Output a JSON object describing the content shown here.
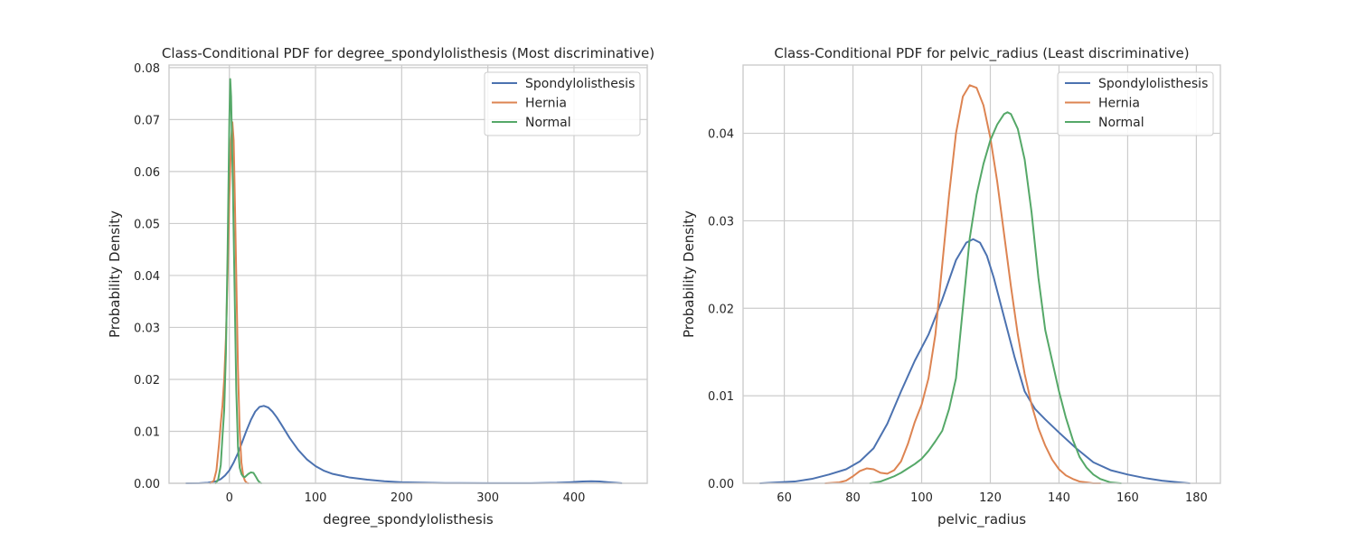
{
  "chart_data": [
    {
      "type": "line",
      "title": "Class-Conditional PDF for degree_spondylolisthesis (Most discriminative)",
      "xlabel": "degree_spondylolisthesis",
      "ylabel": "Probability Density",
      "xlim": [
        -70,
        485
      ],
      "ylim": [
        0,
        0.0805
      ],
      "xticks": [
        0,
        100,
        200,
        300,
        400
      ],
      "yticks": [
        0.0,
        0.01,
        0.02,
        0.03,
        0.04,
        0.05,
        0.06,
        0.07,
        0.08
      ],
      "ytick_decimals": 2,
      "grid": true,
      "legend": "top-right",
      "series": [
        {
          "name": "Spondylolisthesis",
          "color": "#4c72b0",
          "x": [
            -50,
            -35,
            -25,
            -15,
            -10,
            -5,
            0,
            5,
            10,
            15,
            20,
            25,
            30,
            35,
            40,
            45,
            50,
            55,
            60,
            70,
            80,
            90,
            100,
            110,
            120,
            140,
            160,
            180,
            200,
            250,
            300,
            350,
            380,
            395,
            410,
            420,
            430,
            440,
            455
          ],
          "y": [
            0,
            2e-05,
            0.0001,
            0.0004,
            0.0008,
            0.0015,
            0.0025,
            0.004,
            0.0058,
            0.008,
            0.0102,
            0.0122,
            0.0138,
            0.0147,
            0.0149,
            0.0146,
            0.0138,
            0.0127,
            0.0114,
            0.0087,
            0.0064,
            0.0046,
            0.0033,
            0.0024,
            0.0018,
            0.0011,
            0.0007,
            0.0004,
            0.0002,
            5e-05,
            2e-05,
            3e-05,
            0.0001,
            0.0002,
            0.00035,
            0.0004,
            0.00035,
            0.0002,
            2e-05
          ]
        },
        {
          "name": "Hernia",
          "color": "#dd8452",
          "x": [
            -22,
            -18,
            -15,
            -12,
            -10,
            -8,
            -6,
            -4,
            -2,
            0,
            2,
            3.5,
            5,
            6,
            8,
            10,
            12,
            14,
            16,
            18,
            20,
            22
          ],
          "y": [
            0,
            0.0005,
            0.0025,
            0.0075,
            0.0115,
            0.015,
            0.02,
            0.028,
            0.04,
            0.055,
            0.066,
            0.0695,
            0.066,
            0.058,
            0.04,
            0.022,
            0.01,
            0.004,
            0.0015,
            0.0005,
            0.0001,
            0
          ]
        },
        {
          "name": "Normal",
          "color": "#55a868",
          "x": [
            -16,
            -13,
            -10,
            -8,
            -6,
            -4,
            -2,
            0,
            1,
            2,
            4,
            6,
            8,
            10,
            12,
            14,
            16,
            18,
            20,
            22,
            25,
            28,
            31,
            33,
            35,
            37
          ],
          "y": [
            0,
            0.0007,
            0.0035,
            0.009,
            0.014,
            0.025,
            0.045,
            0.07,
            0.0778,
            0.0745,
            0.058,
            0.038,
            0.018,
            0.007,
            0.003,
            0.0018,
            0.0013,
            0.0012,
            0.0015,
            0.0018,
            0.0021,
            0.002,
            0.0012,
            0.0006,
            0.0002,
            0
          ]
        }
      ]
    },
    {
      "type": "line",
      "title": "Class-Conditional PDF for pelvic_radius (Least discriminative)",
      "xlabel": "pelvic_radius",
      "ylabel": "Probability Density",
      "xlim": [
        48,
        187
      ],
      "ylim": [
        0,
        0.0478
      ],
      "xticks": [
        60,
        80,
        100,
        120,
        140,
        160,
        180
      ],
      "yticks": [
        0.0,
        0.01,
        0.02,
        0.03,
        0.04
      ],
      "ytick_decimals": 2,
      "grid": true,
      "legend": "top-right",
      "series": [
        {
          "name": "Spondylolisthesis",
          "color": "#4c72b0",
          "x": [
            53,
            58,
            63,
            68,
            73,
            78,
            82,
            86,
            90,
            94,
            98,
            102,
            106,
            110,
            113,
            115,
            117,
            119,
            121,
            124,
            127,
            130,
            133,
            136,
            140,
            145,
            150,
            155,
            160,
            165,
            170,
            175,
            178
          ],
          "y": [
            0,
            0.0001,
            0.0002,
            0.0005,
            0.001,
            0.0016,
            0.0025,
            0.004,
            0.0068,
            0.0105,
            0.014,
            0.017,
            0.021,
            0.0255,
            0.0275,
            0.0279,
            0.0275,
            0.026,
            0.0235,
            0.019,
            0.0145,
            0.0105,
            0.0085,
            0.0073,
            0.0058,
            0.004,
            0.0024,
            0.0015,
            0.001,
            0.0006,
            0.0003,
            0.0001,
            0
          ]
        },
        {
          "name": "Hernia",
          "color": "#dd8452",
          "x": [
            72,
            76,
            78,
            80,
            82,
            84,
            86,
            88,
            90,
            92,
            94,
            96,
            98,
            100,
            102,
            104,
            106,
            108,
            110,
            112,
            114,
            116,
            118,
            120,
            122,
            124,
            126,
            128,
            130,
            132,
            134,
            136,
            138,
            140,
            142,
            144,
            146,
            148,
            150,
            152
          ],
          "y": [
            0,
            0.0001,
            0.0003,
            0.0008,
            0.0014,
            0.0017,
            0.0016,
            0.0012,
            0.0011,
            0.0015,
            0.0025,
            0.0045,
            0.007,
            0.009,
            0.012,
            0.017,
            0.025,
            0.033,
            0.04,
            0.0442,
            0.0455,
            0.0452,
            0.0432,
            0.0395,
            0.0345,
            0.0285,
            0.0225,
            0.017,
            0.0125,
            0.009,
            0.0063,
            0.0043,
            0.0027,
            0.0016,
            0.0009,
            0.0005,
            0.0002,
            0.0001,
            0,
            0
          ]
        },
        {
          "name": "Normal",
          "color": "#55a868",
          "x": [
            85,
            88,
            90,
            92,
            94,
            96,
            98,
            100,
            102,
            104,
            106,
            108,
            110,
            112,
            114,
            116,
            118,
            120,
            122,
            124,
            125,
            126,
            128,
            130,
            132,
            134,
            136,
            138,
            140,
            142,
            144,
            146,
            148,
            150,
            152,
            155,
            158
          ],
          "y": [
            0,
            0.0002,
            0.0005,
            0.0008,
            0.0012,
            0.0017,
            0.0022,
            0.0028,
            0.0037,
            0.0048,
            0.006,
            0.0085,
            0.012,
            0.02,
            0.028,
            0.033,
            0.0365,
            0.0392,
            0.041,
            0.0422,
            0.0424,
            0.0422,
            0.0405,
            0.037,
            0.031,
            0.0235,
            0.0175,
            0.014,
            0.0105,
            0.0075,
            0.005,
            0.003,
            0.0018,
            0.001,
            0.0005,
            0.0001,
            0
          ]
        }
      ]
    }
  ]
}
